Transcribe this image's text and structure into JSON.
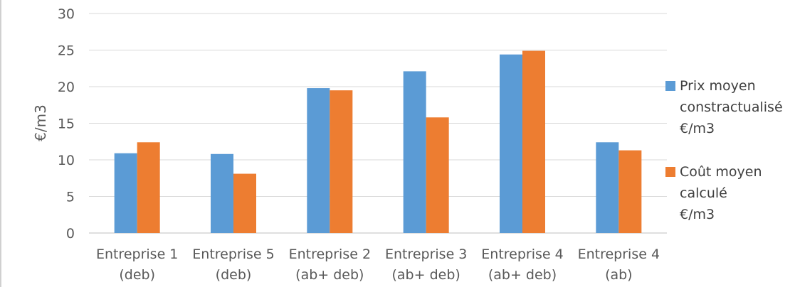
{
  "chart_data": {
    "type": "bar",
    "title": "",
    "xlabel": "",
    "ylabel": "€/m3",
    "ylim": [
      0,
      30
    ],
    "yticks": [
      0,
      5,
      10,
      15,
      20,
      25,
      30
    ],
    "grid": true,
    "legend_position": "right",
    "categories": [
      [
        "Entreprise 1",
        "(deb)"
      ],
      [
        "Entreprise 5",
        "(deb)"
      ],
      [
        "Entreprise 2",
        "(ab+ deb)"
      ],
      [
        "Entreprise 3",
        "(ab+ deb)"
      ],
      [
        "Entreprise 4",
        "(ab+ deb)"
      ],
      [
        "Entreprise 4",
        "(ab)"
      ]
    ],
    "series": [
      {
        "name": [
          "Prix moyen",
          "constractualisé",
          "€/m3"
        ],
        "color": "#5b9bd5",
        "values": [
          10.9,
          10.8,
          19.8,
          22.1,
          24.4,
          12.4
        ]
      },
      {
        "name": [
          "Coût moyen",
          "calculé",
          "€/m3"
        ],
        "color": "#ed7d31",
        "values": [
          12.4,
          8.1,
          19.5,
          15.8,
          24.9,
          11.3
        ]
      }
    ]
  }
}
